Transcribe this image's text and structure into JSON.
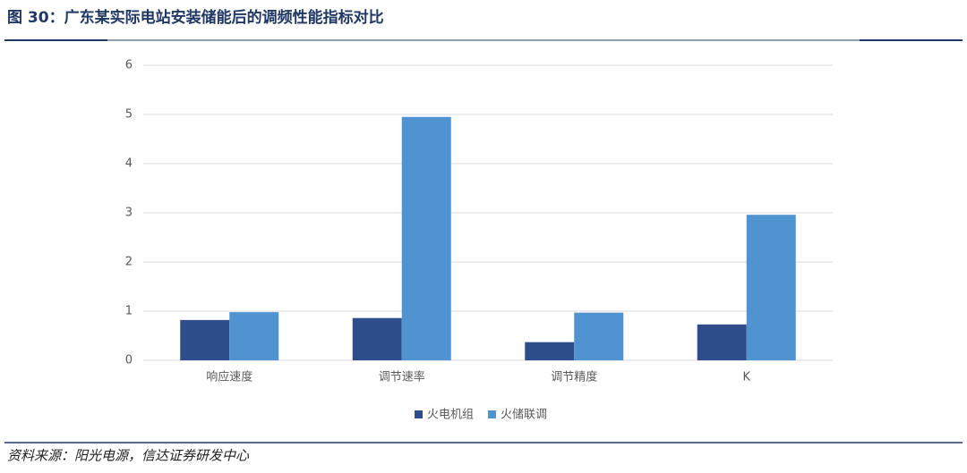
{
  "chart_data": {
    "type": "bar",
    "title": "图 30：广东某实际电站安装储能后的调频性能指标对比",
    "source": "资料来源：阳光电源，信达证券研发中心",
    "categories": [
      "响应速度",
      "调节速率",
      "调节精度",
      "K"
    ],
    "series": [
      {
        "name": "火电机组",
        "color": "#2e4d8a",
        "values": [
          0.82,
          0.86,
          0.37,
          0.73
        ]
      },
      {
        "name": "火储联调",
        "color": "#4f94d0",
        "values": [
          0.98,
          4.95,
          0.97,
          2.96
        ]
      }
    ],
    "ylim": [
      0,
      6
    ],
    "yticks": [
      0,
      1,
      2,
      3,
      4,
      5,
      6
    ],
    "grid": true,
    "legend": "bottom"
  }
}
